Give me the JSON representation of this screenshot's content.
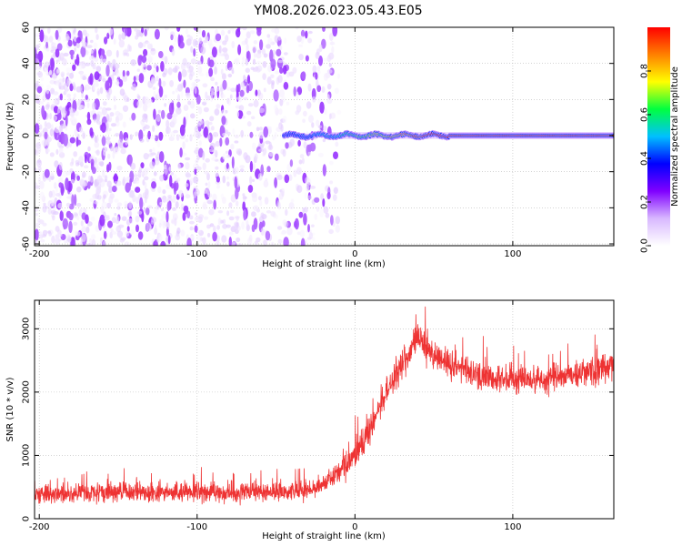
{
  "title": "YM08.2026.023.05.43.E05",
  "chart_data": [
    {
      "type": "heatmap",
      "xlabel": "Height of straight line (km)",
      "ylabel": "Frequency (Hz)",
      "xlim": [
        -203,
        164
      ],
      "ylim": [
        -61,
        60
      ],
      "xticks": [
        -200,
        -100,
        0,
        100
      ],
      "yticks": [
        60,
        40,
        20,
        0,
        -20,
        -40,
        -60
      ],
      "colorbar": {
        "label": "Normalized spectral amplitude",
        "range": [
          0,
          1
        ],
        "ticks": [
          0.0,
          0.2,
          0.4,
          0.6,
          0.8
        ],
        "tick_labels": [
          "0.0",
          "0.2",
          "0.4",
          "0.6",
          "0.8"
        ],
        "colormap": [
          "#ffffff",
          "#d8b8ff",
          "#8000ff",
          "#0000ff",
          "#00c0ff",
          "#00ff40",
          "#ffff00",
          "#ff8000",
          "#ff0000"
        ]
      },
      "features": [
        {
          "name": "noise",
          "x_range": [
            -203,
            -10
          ],
          "freq_range": [
            -61,
            60
          ],
          "amplitude": [
            0.02,
            0.15
          ]
        },
        {
          "name": "signal",
          "freq": 0,
          "x_range": [
            -45,
            164
          ],
          "amplitude": [
            0.3,
            0.98
          ]
        }
      ],
      "grid": true
    },
    {
      "type": "line",
      "xlabel": "Height of straight line (km)",
      "ylabel": "SNR (10 * v/v)",
      "xlim": [
        -203,
        164
      ],
      "ylim": [
        0,
        3450
      ],
      "xticks": [
        -200,
        -100,
        0,
        100
      ],
      "yticks": [
        0,
        1000,
        2000,
        3000
      ],
      "color": "#ee3333",
      "grid": true,
      "series": [
        {
          "x": [
            -203,
            -180,
            -150,
            -120,
            -100,
            -80,
            -60,
            -40,
            -30,
            -20,
            -10,
            0,
            10,
            20,
            30,
            35,
            40,
            45,
            50,
            60,
            80,
            100,
            120,
            140,
            164
          ],
          "y": [
            400,
            400,
            420,
            410,
            420,
            410,
            420,
            430,
            460,
            560,
            750,
            1000,
            1450,
            2000,
            2450,
            2600,
            2900,
            2700,
            2600,
            2450,
            2250,
            2200,
            2200,
            2300,
            2400
          ]
        }
      ]
    }
  ]
}
